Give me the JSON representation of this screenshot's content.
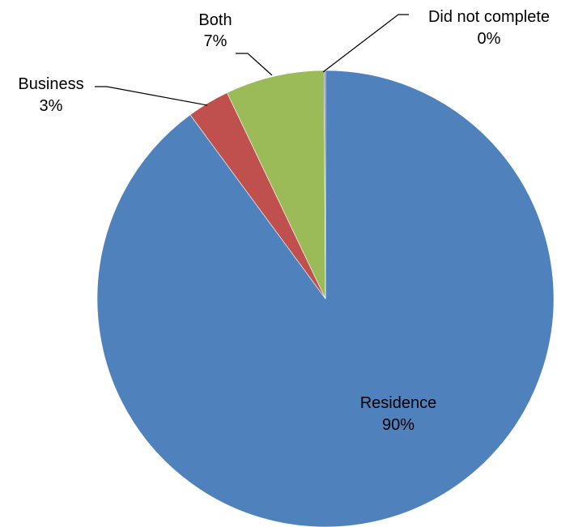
{
  "chart_data": {
    "type": "pie",
    "title": "",
    "slices": [
      {
        "category": "Residence",
        "value": 90,
        "percent_label": "90%",
        "color": "#4F81BD"
      },
      {
        "category": "Business",
        "value": 3,
        "percent_label": "3%",
        "color": "#C0504D"
      },
      {
        "category": "Both",
        "value": 7,
        "percent_label": "7%",
        "color": "#9BBB59"
      },
      {
        "category": "Did not complete",
        "value": 0.1,
        "percent_label": "0%",
        "color": "#8064A2"
      }
    ],
    "legend": "none",
    "data_labels": "category and percentage, outside with leader lines except Residence (inside)"
  }
}
